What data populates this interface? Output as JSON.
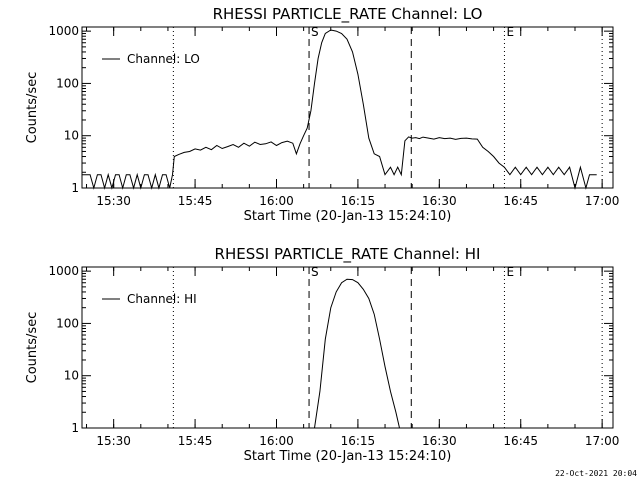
{
  "footer": {
    "timestamp": "22-Oct-2021 20:04"
  },
  "chart_data": [
    {
      "type": "line",
      "title": "RHESSI PARTICLE_RATE Channel: LO",
      "xlabel": "Start Time (20-Jan-13 15:24:10)",
      "ylabel": "Counts/sec",
      "yscale": "log",
      "xlim": [
        "15:24:10",
        "17:02:00"
      ],
      "ylim": [
        1,
        1200
      ],
      "x_ticks": [
        "15:30",
        "15:45",
        "16:00",
        "16:15",
        "16:30",
        "16:45",
        "17:00"
      ],
      "y_ticks": [
        "1",
        "10",
        "100",
        "1000"
      ],
      "legend": {
        "label": "Channel: LO",
        "position": "top-left"
      },
      "markers": [
        {
          "label": "S",
          "time": "16:06:00",
          "style": "dashed"
        },
        {
          "label": "",
          "time": "16:24:50",
          "style": "dashed"
        },
        {
          "label": "E",
          "time": "16:42:00",
          "style": "dotted"
        },
        {
          "label": "",
          "time": "15:41:00",
          "style": "dotted"
        },
        {
          "label": "",
          "time": "17:00:00",
          "style": "dotted"
        }
      ],
      "series": [
        {
          "name": "Channel: LO",
          "x": [
            "15:24:10",
            "15:25:40",
            "15:26:20",
            "15:27:00",
            "15:27:40",
            "15:28:20",
            "15:29:00",
            "15:29:40",
            "15:30:20",
            "15:31:00",
            "15:31:40",
            "15:32:20",
            "15:33:00",
            "15:33:40",
            "15:34:20",
            "15:35:00",
            "15:35:40",
            "15:36:20",
            "15:37:00",
            "15:37:40",
            "15:38:20",
            "15:39:00",
            "15:39:40",
            "15:40:20",
            "15:40:50",
            "15:41:10",
            "15:42:00",
            "15:43:00",
            "15:44:00",
            "15:45:00",
            "15:46:00",
            "15:47:00",
            "15:48:00",
            "15:49:00",
            "15:50:00",
            "15:51:00",
            "15:52:00",
            "15:53:00",
            "15:54:00",
            "15:55:00",
            "15:56:00",
            "15:57:00",
            "15:58:00",
            "15:59:00",
            "16:00:00",
            "16:01:00",
            "16:02:00",
            "16:03:00",
            "16:03:40",
            "16:04:20",
            "16:05:00",
            "16:05:40",
            "16:06:20",
            "16:07:00",
            "16:07:40",
            "16:08:20",
            "16:09:00",
            "16:10:00",
            "16:11:00",
            "16:12:00",
            "16:13:00",
            "16:14:00",
            "16:15:00",
            "16:16:00",
            "16:17:00",
            "16:18:00",
            "16:19:00",
            "16:20:00",
            "16:21:00",
            "16:21:40",
            "16:22:20",
            "16:23:00",
            "16:23:40",
            "16:24:20",
            "16:25:00",
            "16:25:40",
            "16:26:20",
            "16:27:00",
            "16:28:00",
            "16:29:00",
            "16:30:00",
            "16:31:00",
            "16:32:00",
            "16:33:00",
            "16:34:00",
            "16:35:00",
            "16:36:00",
            "16:37:00",
            "16:38:00",
            "16:39:00",
            "16:40:00",
            "16:41:00",
            "16:42:00",
            "16:43:00",
            "16:44:00",
            "16:45:00",
            "16:46:00",
            "16:47:00",
            "16:48:00",
            "16:49:00",
            "16:50:00",
            "16:51:00",
            "16:52:00",
            "16:53:00",
            "16:54:00",
            "16:55:00",
            "16:56:00",
            "16:57:00",
            "16:57:40",
            "16:58:20",
            "16:59:00"
          ],
          "y": [
            1.8,
            1.8,
            1.0,
            1.8,
            1.8,
            1.0,
            1.8,
            1.0,
            1.8,
            1.8,
            1.0,
            1.8,
            1.8,
            1.0,
            1.8,
            1.0,
            1.8,
            1.8,
            1.0,
            1.8,
            1.0,
            1.8,
            1.8,
            1.0,
            1.8,
            4.0,
            4.4,
            4.8,
            5.0,
            5.6,
            5.3,
            6.0,
            5.4,
            6.5,
            5.7,
            6.2,
            6.8,
            6.0,
            7.2,
            6.3,
            7.5,
            6.8,
            7.0,
            7.6,
            6.5,
            7.4,
            7.9,
            7.2,
            4.5,
            7.0,
            10,
            14,
            30,
            100,
            300,
            600,
            900,
            1050,
            1000,
            900,
            700,
            400,
            150,
            40,
            9,
            4.5,
            4.0,
            1.8,
            2.5,
            1.8,
            2.5,
            1.8,
            8.0,
            9.5,
            9.0,
            9.2,
            8.8,
            9.4,
            9.0,
            8.6,
            9.2,
            8.8,
            9.0,
            8.5,
            8.9,
            9.0,
            8.7,
            8.6,
            6.0,
            5.0,
            4.0,
            3.0,
            2.5,
            1.8,
            2.5,
            1.8,
            2.5,
            1.8,
            2.5,
            1.8,
            2.5,
            1.8,
            2.5,
            1.8,
            2.5,
            1.0,
            2.5,
            1.0,
            1.8,
            1.8,
            1.8
          ]
        }
      ]
    },
    {
      "type": "line",
      "title": "RHESSI PARTICLE_RATE Channel: HI",
      "xlabel": "Start Time (20-Jan-13 15:24:10)",
      "ylabel": "Counts/sec",
      "yscale": "log",
      "xlim": [
        "15:24:10",
        "17:02:00"
      ],
      "ylim": [
        1,
        1200
      ],
      "x_ticks": [
        "15:30",
        "15:45",
        "16:00",
        "16:15",
        "16:30",
        "16:45",
        "17:00"
      ],
      "y_ticks": [
        "1",
        "10",
        "100",
        "1000"
      ],
      "legend": {
        "label": "Channel: HI",
        "position": "top-left"
      },
      "markers": [
        {
          "label": "S",
          "time": "16:06:00",
          "style": "dashed"
        },
        {
          "label": "",
          "time": "16:24:50",
          "style": "dashed"
        },
        {
          "label": "E",
          "time": "16:42:00",
          "style": "dotted"
        },
        {
          "label": "",
          "time": "15:41:00",
          "style": "dotted"
        },
        {
          "label": "",
          "time": "17:00:00",
          "style": "dotted"
        }
      ],
      "series": [
        {
          "name": "Channel: HI",
          "x": [
            "16:07:00",
            "16:08:00",
            "16:09:00",
            "16:10:00",
            "16:11:00",
            "16:12:00",
            "16:13:00",
            "16:14:00",
            "16:15:00",
            "16:16:00",
            "16:17:00",
            "16:18:00",
            "16:19:00",
            "16:20:00",
            "16:21:00",
            "16:22:00",
            "16:22:40"
          ],
          "y": [
            1.0,
            5,
            50,
            200,
            400,
            600,
            700,
            690,
            600,
            450,
            300,
            150,
            50,
            15,
            5,
            2,
            1.0
          ]
        }
      ]
    }
  ]
}
